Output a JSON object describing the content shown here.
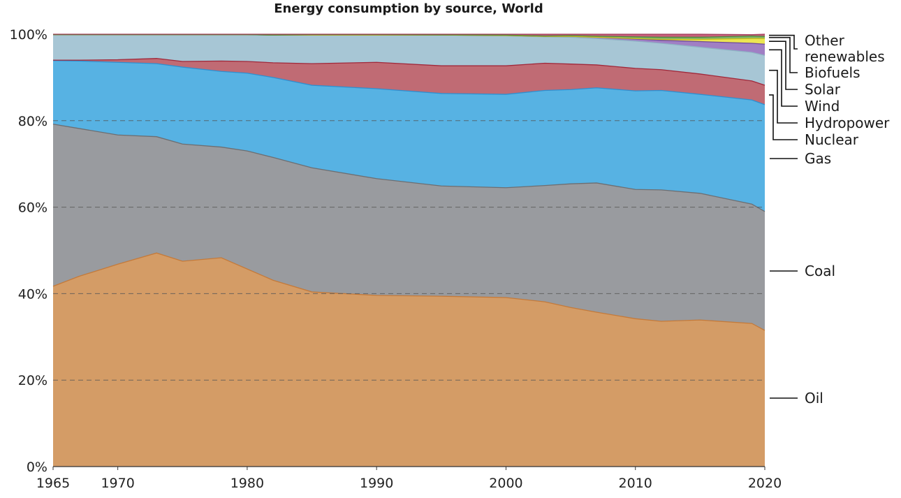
{
  "chart_data": {
    "type": "area",
    "stacked": true,
    "normalized": true,
    "title": "Energy consumption by source, World",
    "xlabel": "",
    "ylabel": "",
    "xlim": [
      1965,
      2020
    ],
    "ylim": [
      0,
      100
    ],
    "x_ticks": [
      "1965",
      "1970",
      "1980",
      "1990",
      "2000",
      "2010",
      "2020"
    ],
    "y_ticks": [
      "0%",
      "20%",
      "40%",
      "60%",
      "80%",
      "100%"
    ],
    "grid": "horizontal dashed",
    "legend": "right, inline labels",
    "x": [
      1965,
      1967,
      1970,
      1973,
      1975,
      1978,
      1980,
      1982,
      1985,
      1990,
      1995,
      2000,
      2003,
      2005,
      2007,
      2010,
      2012,
      2015,
      2019,
      2020
    ],
    "series": [
      {
        "name": "Oil",
        "color": "#d49c66",
        "line": "#c47a3a",
        "values": [
          41.7,
          44.0,
          46.8,
          49.4,
          47.5,
          48.3,
          45.7,
          43.1,
          40.4,
          39.6,
          39.4,
          39.1,
          38.1,
          36.8,
          35.7,
          34.2,
          33.6,
          33.9,
          33.1,
          31.5
        ]
      },
      {
        "name": "Coal",
        "color": "#999b9f",
        "line": "#6d6e71",
        "values": [
          37.5,
          34.2,
          29.9,
          26.9,
          27.1,
          25.6,
          27.3,
          28.4,
          28.7,
          27.0,
          25.5,
          25.4,
          26.9,
          28.6,
          29.9,
          29.9,
          30.4,
          29.3,
          27.6,
          27.5
        ]
      },
      {
        "name": "Gas",
        "color": "#57b2e3",
        "line": "#2e8fd0",
        "values": [
          14.7,
          15.6,
          16.8,
          16.9,
          17.8,
          17.5,
          18.0,
          18.5,
          19.1,
          20.8,
          21.4,
          21.6,
          22.0,
          21.8,
          22.0,
          22.8,
          23.0,
          22.9,
          24.1,
          24.7
        ]
      },
      {
        "name": "Nuclear",
        "color": "#c06b74",
        "line": "#a0283a",
        "values": [
          0.1,
          0.2,
          0.6,
          1.2,
          1.3,
          2.4,
          2.7,
          3.4,
          5.0,
          6.1,
          6.4,
          6.6,
          6.3,
          5.9,
          5.3,
          5.2,
          4.8,
          4.7,
          4.4,
          4.5
        ]
      },
      {
        "name": "Hydropower",
        "color": "#a7c6d5",
        "line": "#8fb2c4",
        "values": [
          5.9,
          5.9,
          5.8,
          5.5,
          6.2,
          6.1,
          6.2,
          6.4,
          6.6,
          6.3,
          7.1,
          6.9,
          6.1,
          6.2,
          6.1,
          6.3,
          6.1,
          6.2,
          6.6,
          6.9
        ]
      },
      {
        "name": "Wind",
        "color": "#a07fc4",
        "line": "#6e4a99",
        "values": [
          0,
          0,
          0,
          0,
          0,
          0,
          0,
          0,
          0,
          0,
          0,
          0.1,
          0.1,
          0.2,
          0.3,
          0.5,
          0.7,
          1.3,
          2.1,
          2.6
        ]
      },
      {
        "name": "Solar",
        "color": "#ece552",
        "line": "#c9bf1c",
        "values": [
          0,
          0,
          0,
          0,
          0,
          0,
          0,
          0,
          0,
          0,
          0,
          0,
          0,
          0,
          0,
          0.1,
          0.2,
          0.5,
          1.1,
          1.3
        ]
      },
      {
        "name": "Biofuels",
        "color": "#7fb36a",
        "line": "#4f8a3a",
        "values": [
          0,
          0,
          0,
          0,
          0,
          0,
          0,
          0,
          0.1,
          0.1,
          0.05,
          0.1,
          0.1,
          0.2,
          0.25,
          0.4,
          0.5,
          0.5,
          0.6,
          0.5
        ]
      },
      {
        "name": "Other renewables",
        "color": "#c9607c",
        "line": "#a03a58",
        "values": [
          0.1,
          0.1,
          0.1,
          0.1,
          0.1,
          0.1,
          0.1,
          0.2,
          0.1,
          0.1,
          0.15,
          0.2,
          0.4,
          0.3,
          0.45,
          0.6,
          0.7,
          0.7,
          0.3,
          0.5
        ]
      }
    ],
    "labels": [
      "Other",
      "renewables",
      "Biofuels",
      "Solar",
      "Wind",
      "Hydropower",
      "Nuclear",
      "Gas",
      "Coal",
      "Oil"
    ]
  }
}
